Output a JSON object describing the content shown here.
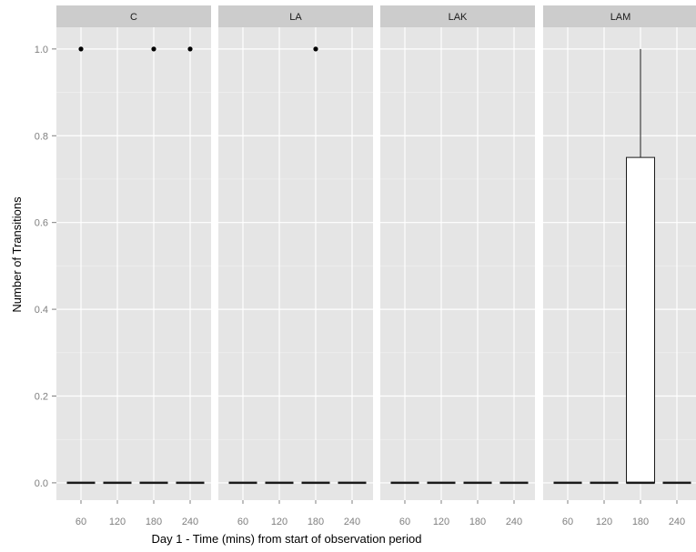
{
  "chart_data": {
    "type": "boxplot",
    "xlabel": "Day 1 - Time (mins) from start of observation period",
    "ylabel": "Number of Transitions",
    "x_categories": [
      "60",
      "120",
      "180",
      "240"
    ],
    "y_ticks": [
      "0.0",
      "0.2",
      "0.4",
      "0.6",
      "0.8",
      "1.0"
    ],
    "ylim": [
      -0.04,
      1.05
    ],
    "grid": true,
    "colors": {
      "panel_bg": "#e5e5e5",
      "strip_bg": "#cccccc",
      "grid": "#ffffff",
      "box_fill": "#ffffff",
      "line": "#1a1a1a"
    },
    "panels": [
      {
        "label": "C",
        "boxes": [
          {
            "x": "60",
            "q1": 0,
            "median": 0,
            "q3": 0,
            "whisker_low": 0,
            "whisker_high": 0,
            "outliers": [
              1
            ]
          },
          {
            "x": "120",
            "q1": 0,
            "median": 0,
            "q3": 0,
            "whisker_low": 0,
            "whisker_high": 0,
            "outliers": []
          },
          {
            "x": "180",
            "q1": 0,
            "median": 0,
            "q3": 0,
            "whisker_low": 0,
            "whisker_high": 0,
            "outliers": [
              1
            ]
          },
          {
            "x": "240",
            "q1": 0,
            "median": 0,
            "q3": 0,
            "whisker_low": 0,
            "whisker_high": 0,
            "outliers": [
              1
            ]
          }
        ]
      },
      {
        "label": "LA",
        "boxes": [
          {
            "x": "60",
            "q1": 0,
            "median": 0,
            "q3": 0,
            "whisker_low": 0,
            "whisker_high": 0,
            "outliers": []
          },
          {
            "x": "120",
            "q1": 0,
            "median": 0,
            "q3": 0,
            "whisker_low": 0,
            "whisker_high": 0,
            "outliers": []
          },
          {
            "x": "180",
            "q1": 0,
            "median": 0,
            "q3": 0,
            "whisker_low": 0,
            "whisker_high": 0,
            "outliers": [
              1
            ]
          },
          {
            "x": "240",
            "q1": 0,
            "median": 0,
            "q3": 0,
            "whisker_low": 0,
            "whisker_high": 0,
            "outliers": []
          }
        ]
      },
      {
        "label": "LAK",
        "boxes": [
          {
            "x": "60",
            "q1": 0,
            "median": 0,
            "q3": 0,
            "whisker_low": 0,
            "whisker_high": 0,
            "outliers": []
          },
          {
            "x": "120",
            "q1": 0,
            "median": 0,
            "q3": 0,
            "whisker_low": 0,
            "whisker_high": 0,
            "outliers": []
          },
          {
            "x": "180",
            "q1": 0,
            "median": 0,
            "q3": 0,
            "whisker_low": 0,
            "whisker_high": 0,
            "outliers": []
          },
          {
            "x": "240",
            "q1": 0,
            "median": 0,
            "q3": 0,
            "whisker_low": 0,
            "whisker_high": 0,
            "outliers": []
          }
        ]
      },
      {
        "label": "LAM",
        "boxes": [
          {
            "x": "60",
            "q1": 0,
            "median": 0,
            "q3": 0,
            "whisker_low": 0,
            "whisker_high": 0,
            "outliers": []
          },
          {
            "x": "120",
            "q1": 0,
            "median": 0,
            "q3": 0,
            "whisker_low": 0,
            "whisker_high": 0,
            "outliers": []
          },
          {
            "x": "180",
            "q1": 0,
            "median": 0,
            "q3": 0.75,
            "whisker_low": 0,
            "whisker_high": 1,
            "outliers": []
          },
          {
            "x": "240",
            "q1": 0,
            "median": 0,
            "q3": 0,
            "whisker_low": 0,
            "whisker_high": 0,
            "outliers": []
          }
        ]
      }
    ]
  }
}
